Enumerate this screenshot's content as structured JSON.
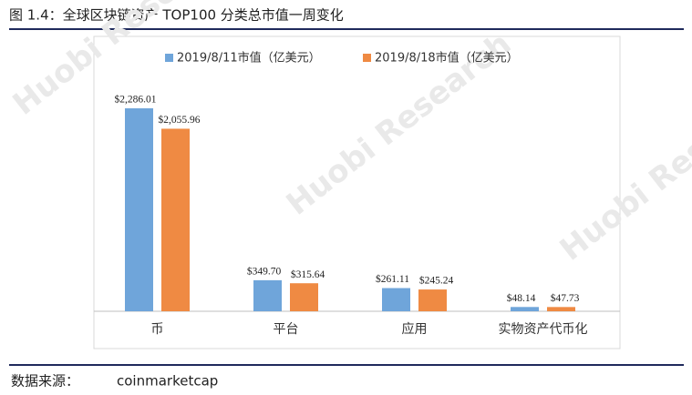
{
  "chart_data": {
    "type": "bar",
    "title": "图 1.4：全球区块链资产 TOP100 分类总市值一周变化",
    "categories": [
      "币",
      "平台",
      "应用",
      "实物资产代币化"
    ],
    "series": [
      {
        "name": "2019/8/11市值（亿美元）",
        "color": "#6fa5da",
        "values": [
          2286.01,
          349.7,
          261.11,
          48.14
        ],
        "value_labels": [
          "$2,286.01",
          "$349.70",
          "$261.11",
          "$48.14"
        ]
      },
      {
        "name": "2019/8/18市值（亿美元）",
        "color": "#ef8a43",
        "values": [
          2055.96,
          315.64,
          245.24,
          47.73
        ],
        "value_labels": [
          "$2,055.96",
          "$315.64",
          "$245.24",
          "$47.73"
        ]
      }
    ],
    "legend": "top",
    "watermark": "Huobi Research",
    "source_label": "数据来源：",
    "source": "coinmarketcap"
  }
}
